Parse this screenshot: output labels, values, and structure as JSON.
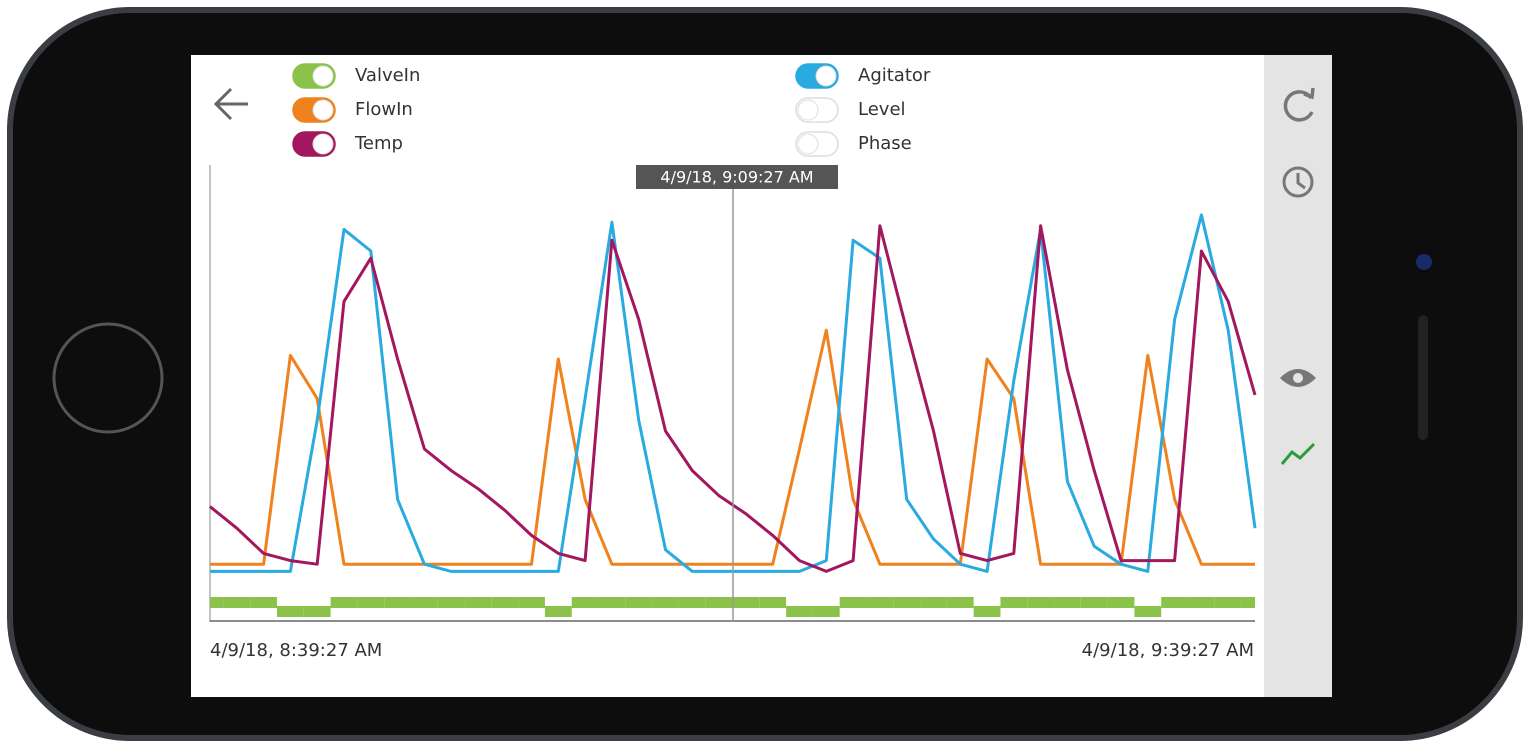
{
  "chart_data": {
    "type": "line",
    "start_label": "4/9/18, 8:39:27 AM",
    "end_label": "4/9/18, 9:39:27 AM",
    "cursor_label": "4/9/18, 9:09:27 AM",
    "ylim": [
      0,
      100
    ],
    "y2lim": [
      0,
      1
    ],
    "series": [
      {
        "name": "ValveIn",
        "color": "#8bc34a",
        "on": true,
        "axis": "y2",
        "values": [
          1,
          1,
          1,
          0,
          0,
          1,
          1,
          1,
          1,
          1,
          1,
          1,
          1,
          0,
          1,
          1,
          1,
          1,
          1,
          1,
          1,
          1,
          0,
          0,
          1,
          1,
          1,
          1,
          1,
          0,
          1,
          1,
          1,
          1,
          1,
          0,
          1,
          1,
          1,
          1
        ]
      },
      {
        "name": "FlowIn",
        "color": "#f0821e",
        "on": true,
        "values": [
          3,
          3,
          3,
          61,
          49,
          3,
          3,
          3,
          3,
          3,
          3,
          3,
          3,
          60,
          21,
          3,
          3,
          3,
          3,
          3,
          3,
          3,
          35,
          68,
          21,
          3,
          3,
          3,
          3,
          60,
          49,
          3,
          3,
          3,
          3,
          61,
          21,
          3,
          3,
          3
        ]
      },
      {
        "name": "Temp",
        "color": "#a3175e",
        "on": true,
        "values": [
          19,
          13,
          6,
          4,
          3,
          76,
          88,
          60,
          35,
          29,
          24,
          18,
          11,
          6,
          4,
          93,
          71,
          40,
          29,
          22,
          17,
          11,
          4,
          1,
          4,
          97,
          68,
          40,
          6,
          4,
          6,
          97,
          57,
          29,
          4,
          4,
          4,
          90,
          76,
          50
        ]
      },
      {
        "name": "Agitator",
        "color": "#29aae1",
        "on": true,
        "values": [
          1,
          1,
          1,
          1,
          43,
          96,
          90,
          21,
          3,
          1,
          1,
          1,
          1,
          1,
          49,
          98,
          43,
          7,
          1,
          1,
          1,
          1,
          1,
          4,
          93,
          88,
          21,
          10,
          3,
          1,
          54,
          96,
          26,
          8,
          3,
          1,
          71,
          100,
          68,
          13
        ]
      },
      {
        "name": "Level",
        "color": "#29aae1",
        "on": false
      },
      {
        "name": "Phase",
        "color": "#29aae1",
        "on": false
      }
    ]
  }
}
